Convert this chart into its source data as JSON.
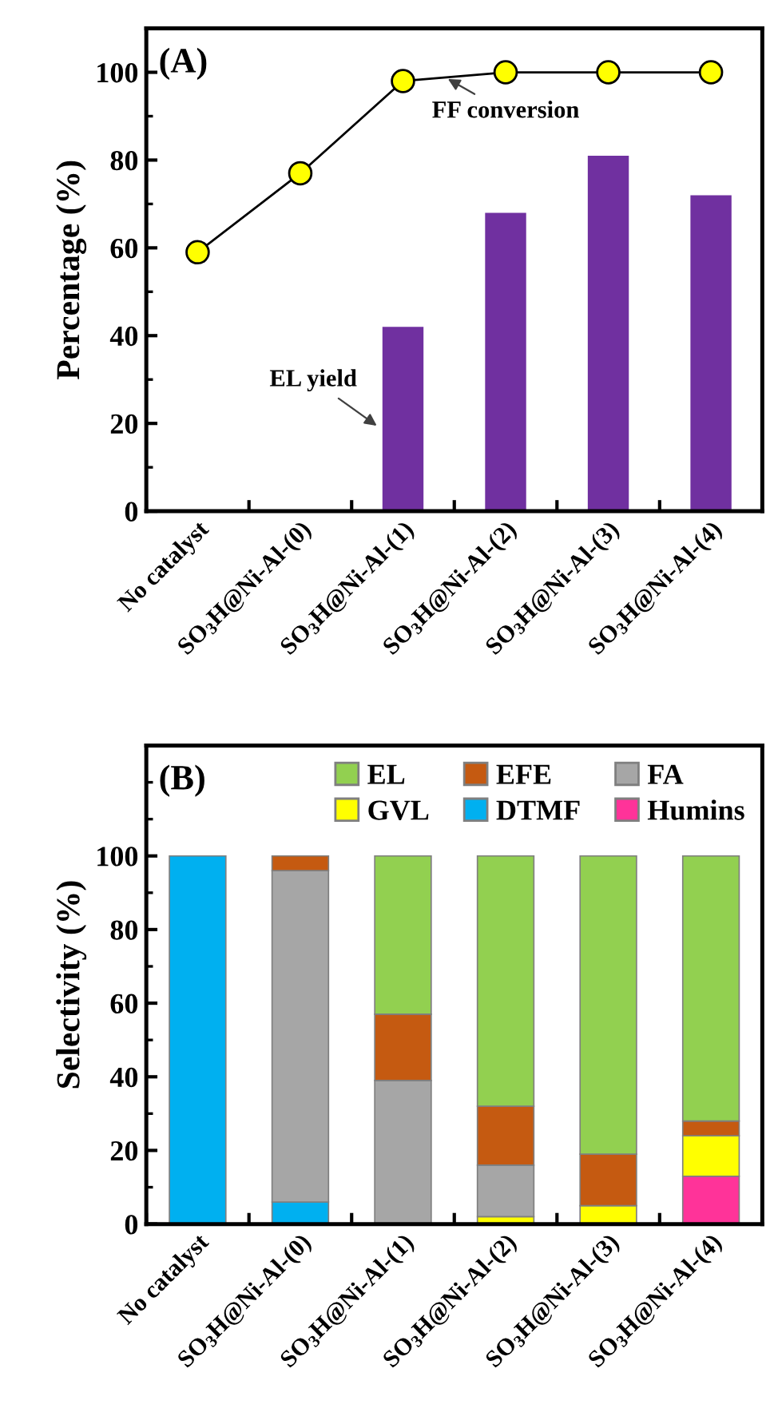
{
  "chart_data": [
    {
      "type": "bar",
      "title": "(A)",
      "ylabel": "Percentage (%)",
      "categories": [
        "No catalyst",
        "SO$_{3}$H@Ni-Al-(0)",
        "SO$_{3}$H@Ni-Al-(1)",
        "SO$_{3}$H@Ni-Al-(2)",
        "SO$_{3}$H@Ni-Al-(3)",
        "SO$_{3}$H@Ni-Al-(4)"
      ],
      "series": [
        {
          "name": "EL yield",
          "type": "bar",
          "color": "#7030a0",
          "values": [
            null,
            null,
            42,
            68,
            81,
            72
          ]
        },
        {
          "name": "FF conversion",
          "type": "line",
          "color": "#ffff00",
          "marker": "circle",
          "values": [
            59,
            77,
            98,
            100,
            100,
            100
          ]
        }
      ],
      "ylim": [
        0,
        110
      ],
      "yticks": [
        0,
        20,
        40,
        60,
        80,
        100
      ],
      "grid": false,
      "legend": false
    },
    {
      "type": "bar",
      "stacked": true,
      "title": "(B)",
      "ylabel": "Selectivity (%)",
      "categories": [
        "No catalyst",
        "SO$_{3}$H@Ni-Al-(0)",
        "SO$_{3}$H@Ni-Al-(1)",
        "SO$_{3}$H@Ni-Al-(2)",
        "SO$_{3}$H@Ni-Al-(3)",
        "SO$_{3}$H@Ni-Al-(4)"
      ],
      "series": [
        {
          "name": "Humins",
          "color": "#ff3399",
          "values": [
            null,
            null,
            null,
            null,
            null,
            13
          ]
        },
        {
          "name": "DTMF",
          "color": "#00b0f0",
          "values": [
            100,
            6,
            null,
            null,
            null,
            null
          ]
        },
        {
          "name": "GVL",
          "color": "#ffff00",
          "values": [
            null,
            null,
            null,
            2,
            5,
            11
          ]
        },
        {
          "name": "FA",
          "color": "#a6a6a6",
          "values": [
            null,
            90,
            39,
            14,
            null,
            null
          ]
        },
        {
          "name": "EFE",
          "color": "#c55a11",
          "values": [
            null,
            4,
            18,
            16,
            14,
            4
          ]
        },
        {
          "name": "EL",
          "color": "#92d050",
          "values": [
            null,
            null,
            43,
            68,
            81,
            72
          ]
        }
      ],
      "ylim": [
        0,
        130
      ],
      "yticks": [
        0,
        20,
        40,
        60,
        80,
        100
      ],
      "grid": false,
      "legend": "top right"
    }
  ]
}
